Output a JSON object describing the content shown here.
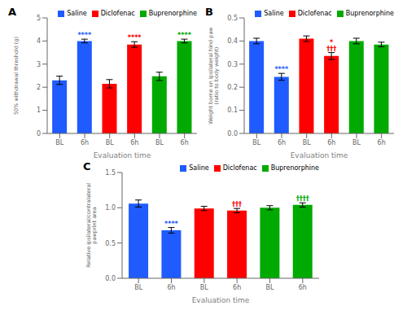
{
  "chart_data": [
    {
      "type": "bar",
      "title": "A",
      "xlabel": "Evaluation time",
      "ylabel": "50% withdrawal threshold (g)",
      "categories": [
        "BL",
        "6h",
        "BL",
        "6h",
        "BL",
        "6h"
      ],
      "series": [
        {
          "name": "Saline",
          "color": "#1F5BFF",
          "values": [
            2.3,
            4.0,
            null,
            null,
            null,
            null
          ],
          "errors": [
            0.18,
            0.08,
            null,
            null,
            null,
            null
          ],
          "annotations": [
            null,
            [
              "****"
            ],
            null,
            null,
            null,
            null
          ]
        },
        {
          "name": "Diclofenac",
          "color": "#FF0000",
          "values": [
            null,
            null,
            2.15,
            3.85,
            null,
            null
          ],
          "errors": [
            null,
            null,
            0.18,
            0.12,
            null,
            null
          ],
          "annotations": [
            null,
            null,
            null,
            [
              "****"
            ],
            null,
            null
          ]
        },
        {
          "name": "Buprenorphine",
          "color": "#00AA00",
          "values": [
            null,
            null,
            null,
            null,
            2.47,
            4.0
          ],
          "errors": [
            null,
            null,
            null,
            null,
            0.18,
            0.08
          ],
          "annotations": [
            null,
            null,
            null,
            null,
            null,
            [
              "****"
            ]
          ]
        }
      ],
      "ylim": [
        0,
        5
      ],
      "yticks": [
        0,
        1,
        2,
        3,
        4,
        5
      ],
      "grid": false,
      "legend": "upper right"
    },
    {
      "type": "bar",
      "title": "B",
      "xlabel": "Evaluation time",
      "ylabel": "Weight borne on ipsilateral hind paw\n(ratio to body weight)",
      "categories": [
        "BL",
        "6h",
        "BL",
        "6h",
        "BL",
        "6h"
      ],
      "series": [
        {
          "name": "Saline",
          "color": "#1F5BFF",
          "values": [
            0.4,
            0.245,
            null,
            null,
            null,
            null
          ],
          "errors": [
            0.012,
            0.015,
            null,
            null,
            null,
            null
          ],
          "annotations": [
            null,
            [
              "****"
            ],
            null,
            null,
            null,
            null
          ]
        },
        {
          "name": "Diclofenac",
          "color": "#FF0000",
          "values": [
            null,
            null,
            0.41,
            0.335,
            null,
            null
          ],
          "errors": [
            null,
            null,
            0.012,
            0.015,
            null,
            null
          ],
          "annotations": [
            null,
            null,
            null,
            [
              "*",
              "†††"
            ],
            null,
            null
          ]
        },
        {
          "name": "Buprenorphine",
          "color": "#00AA00",
          "values": [
            null,
            null,
            null,
            null,
            0.4,
            0.385
          ],
          "errors": [
            null,
            null,
            null,
            null,
            0.012,
            0.01
          ],
          "annotations": [
            null,
            null,
            null,
            null,
            null,
            null
          ]
        }
      ],
      "ylim": [
        0.0,
        0.5
      ],
      "yticks": [
        {
          "value": 0.0,
          "label": "0.0"
        },
        0.1,
        0.2,
        0.3,
        0.4,
        0.5
      ],
      "grid": false,
      "legend": "upper right"
    },
    {
      "type": "bar",
      "title": "C",
      "xlabel": "Evaluation time",
      "ylabel": "Relative ipsilateral/contralateral\npawprint area",
      "categories": [
        "BL",
        "6h",
        "BL",
        "6h",
        "BL",
        "6h"
      ],
      "series": [
        {
          "name": "Saline",
          "color": "#1F5BFF",
          "values": [
            1.06,
            0.68,
            null,
            null,
            null,
            null
          ],
          "errors": [
            0.05,
            0.04,
            null,
            null,
            null,
            null
          ],
          "annotations": [
            null,
            [
              "****"
            ],
            null,
            null,
            null,
            null
          ]
        },
        {
          "name": "Diclofenac",
          "color": "#FF0000",
          "values": [
            null,
            null,
            0.99,
            0.96,
            null,
            null
          ],
          "errors": [
            null,
            null,
            0.03,
            0.03,
            null,
            null
          ],
          "annotations": [
            null,
            null,
            null,
            [
              "†††"
            ],
            null,
            null
          ]
        },
        {
          "name": "Buprenorphine",
          "color": "#00AA00",
          "values": [
            null,
            null,
            null,
            null,
            1.0,
            1.04
          ],
          "errors": [
            null,
            null,
            null,
            null,
            0.03,
            0.03
          ],
          "annotations": [
            null,
            null,
            null,
            null,
            null,
            [
              "††††"
            ]
          ]
        }
      ],
      "ylim": [
        0.0,
        1.5
      ],
      "yticks": [
        {
          "value": 0.0,
          "label": "0.0"
        },
        0.5,
        {
          "value": 1.0,
          "label": "1.0"
        },
        1.5
      ],
      "grid": false,
      "legend": "upper right"
    }
  ]
}
